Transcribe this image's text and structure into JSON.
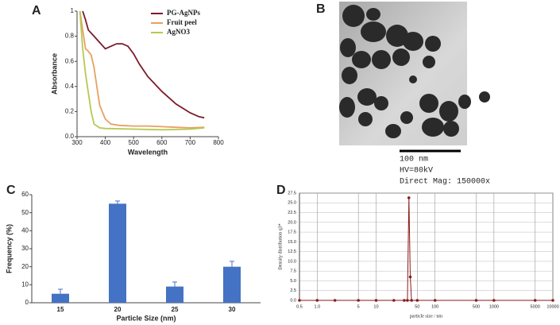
{
  "chart_data": [
    {
      "type": "line",
      "panel_label": "A",
      "x_label": "Wavelength",
      "y_label": "Absorbance",
      "xlim": [
        300,
        800
      ],
      "xticks": [
        300,
        400,
        500,
        600,
        700,
        800
      ],
      "ylim": [
        0,
        1
      ],
      "yticks": [
        {
          "value": 0,
          "label": "0.0"
        },
        0.2,
        0.4,
        0.6,
        0.8,
        1
      ],
      "legend": "upper right",
      "series": [
        {
          "name": "PG-AgNPs",
          "color": "#7b1a2a",
          "x": [
            320,
            330,
            340,
            360,
            380,
            400,
            420,
            440,
            460,
            480,
            500,
            520,
            550,
            600,
            650,
            700,
            730,
            750
          ],
          "values": [
            1.0,
            0.93,
            0.85,
            0.8,
            0.75,
            0.7,
            0.72,
            0.74,
            0.74,
            0.72,
            0.66,
            0.58,
            0.48,
            0.36,
            0.26,
            0.19,
            0.16,
            0.15
          ]
        },
        {
          "name": "Fruit peel",
          "color": "#e8a060",
          "x": [
            310,
            320,
            330,
            340,
            350,
            360,
            370,
            380,
            400,
            420,
            450,
            500,
            550,
            600,
            650,
            700,
            750
          ],
          "values": [
            1.0,
            0.85,
            0.7,
            0.68,
            0.65,
            0.55,
            0.4,
            0.25,
            0.14,
            0.1,
            0.09,
            0.085,
            0.085,
            0.08,
            0.075,
            0.07,
            0.075
          ]
        },
        {
          "name": "AgNO3",
          "color": "#b8c850",
          "x": [
            310,
            320,
            330,
            340,
            350,
            360,
            380,
            400,
            500,
            600,
            700,
            750
          ],
          "values": [
            1.0,
            0.7,
            0.5,
            0.35,
            0.2,
            0.1,
            0.07,
            0.065,
            0.06,
            0.055,
            0.06,
            0.07
          ]
        }
      ]
    },
    {
      "type": "bar",
      "panel_label": "C",
      "x_label": "Particle Size (nm)",
      "y_label": "Frequency (%)",
      "categories": [
        "15",
        "20",
        "25",
        "30"
      ],
      "values": [
        5,
        55,
        9,
        20
      ],
      "errors": [
        2.5,
        1.5,
        2.5,
        3
      ],
      "color": "#4472c4",
      "ylim": [
        0,
        60
      ],
      "yticks": [
        0,
        10,
        20,
        30,
        40,
        50,
        60
      ]
    },
    {
      "type": "line",
      "panel_label": "D",
      "x_label": "particle size / nm",
      "y_label": "Density distribution q3*",
      "log_x": true,
      "grid": true,
      "xlim": [
        0.5,
        10000
      ],
      "xticks": [
        0.5,
        {
          "value": 1,
          "label": "1.0"
        },
        5,
        10,
        50,
        100,
        500,
        1000,
        5000,
        10000
      ],
      "ylim": [
        0,
        27.5
      ],
      "yticks": [
        {
          "value": 0,
          "label": "0.0"
        },
        2.5,
        {
          "value": 5,
          "label": "5.0"
        },
        7.5,
        {
          "value": 10,
          "label": "10.0"
        },
        12.5,
        {
          "value": 15,
          "label": "15.0"
        },
        17.5,
        {
          "value": 20,
          "label": "20.0"
        },
        22.5,
        {
          "value": 25,
          "label": "25.0"
        },
        27.5
      ],
      "series": [
        {
          "color": "#8b1a1a",
          "x": [
            0.5,
            1,
            2,
            5,
            10,
            20,
            30,
            34,
            36,
            38,
            40,
            50,
            100,
            500,
            1000,
            5000,
            10000
          ],
          "values": [
            0,
            0,
            0,
            0,
            0,
            0,
            0,
            0,
            26.3,
            6,
            0,
            0,
            0,
            0,
            0,
            0,
            0
          ]
        }
      ]
    }
  ],
  "image_panel": {
    "panel_label": "B",
    "scale_bar": "100 nm",
    "lines": [
      "HV=80kV",
      "Direct Mag: 150000x"
    ]
  }
}
